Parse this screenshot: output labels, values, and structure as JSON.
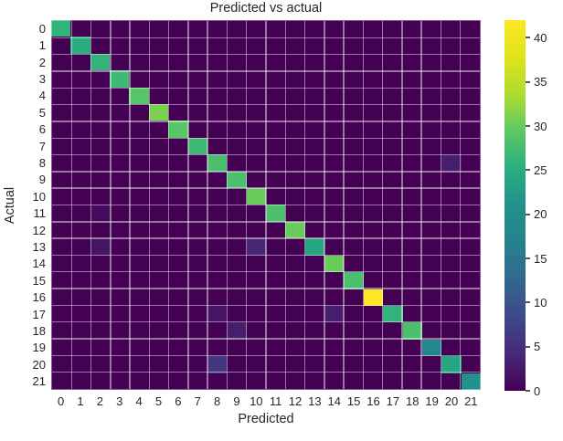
{
  "title": "Predicted vs actual",
  "colors": {
    "background": "#ffffff",
    "text": "#262626",
    "colormap_min": "#440154",
    "colormap_max": "#fde725"
  },
  "chart_data": {
    "type": "heatmap",
    "title": "Predicted vs actual",
    "xlabel": "Predicted",
    "ylabel": "Actual",
    "colormap": "viridis",
    "vmin": 0,
    "vmax": 42,
    "colorbar_ticks": [
      0,
      5,
      10,
      15,
      20,
      25,
      30,
      35,
      40
    ],
    "colorbar_position": "right",
    "grid": true,
    "x_ticklabels": [
      "0",
      "1",
      "2",
      "3",
      "4",
      "5",
      "6",
      "7",
      "8",
      "9",
      "10",
      "11",
      "12",
      "13",
      "14",
      "15",
      "16",
      "17",
      "18",
      "19",
      "20",
      "21"
    ],
    "y_ticklabels": [
      "0",
      "1",
      "2",
      "3",
      "4",
      "5",
      "6",
      "7",
      "8",
      "9",
      "10",
      "11",
      "12",
      "13",
      "14",
      "15",
      "16",
      "17",
      "18",
      "19",
      "20",
      "21"
    ],
    "matrix": [
      [
        26,
        0,
        0,
        0,
        0,
        0,
        0,
        0,
        0,
        0,
        0,
        0,
        0,
        0,
        0,
        0,
        0,
        0,
        0,
        0,
        0,
        0
      ],
      [
        0,
        25,
        0,
        0,
        0,
        0,
        0,
        0,
        0,
        0,
        0,
        0,
        0,
        0,
        0,
        0,
        0,
        0,
        0,
        0,
        0,
        0
      ],
      [
        0,
        0,
        26,
        0,
        0,
        0,
        0,
        0,
        0,
        0,
        0,
        0,
        0,
        0,
        0,
        0,
        0,
        0,
        0,
        0,
        0,
        0
      ],
      [
        0,
        0,
        0,
        27,
        0,
        0,
        0,
        0,
        0,
        0,
        0,
        0,
        0,
        0,
        0,
        0,
        0,
        0,
        0,
        0,
        0,
        0
      ],
      [
        0,
        0,
        0,
        0,
        29,
        0,
        0,
        0,
        0,
        0,
        0,
        0,
        0,
        0,
        0,
        0,
        0,
        0,
        0,
        0,
        0,
        0
      ],
      [
        0,
        0,
        0,
        0,
        0,
        31,
        0,
        0,
        0,
        0,
        0,
        0,
        0,
        0,
        0,
        0,
        0,
        0,
        0,
        0,
        0,
        0
      ],
      [
        0,
        0,
        0,
        0,
        0,
        0,
        29,
        0,
        0,
        0,
        0,
        0,
        0,
        0,
        0,
        0,
        0,
        0,
        0,
        0,
        0,
        0
      ],
      [
        0,
        0,
        0,
        0,
        0,
        0,
        0,
        27,
        0,
        0,
        0,
        0,
        0,
        0,
        0,
        0,
        0,
        0,
        0,
        0,
        0,
        0
      ],
      [
        0,
        0,
        0,
        0,
        0,
        0,
        0,
        0,
        28,
        0,
        0,
        0,
        0,
        0,
        0,
        0,
        0,
        0,
        0,
        0,
        3,
        0
      ],
      [
        0,
        0,
        0,
        0,
        0,
        0,
        0,
        0,
        0,
        28,
        0,
        0,
        0,
        0,
        0,
        0,
        0,
        0,
        0,
        0,
        0,
        0
      ],
      [
        0,
        0,
        0,
        0,
        0,
        0,
        0,
        0,
        0,
        0,
        30,
        0,
        0,
        0,
        0,
        0,
        0,
        0,
        0,
        0,
        0,
        0
      ],
      [
        0,
        0,
        1,
        0,
        0,
        0,
        0,
        0,
        0,
        0,
        0,
        28,
        0,
        0,
        0,
        0,
        0,
        0,
        0,
        0,
        0,
        0
      ],
      [
        0,
        0,
        0,
        0,
        0,
        0,
        0,
        0,
        0,
        0,
        0,
        0,
        30,
        0,
        0,
        0,
        0,
        0,
        0,
        0,
        0,
        0
      ],
      [
        0,
        0,
        2,
        0,
        0,
        0,
        0,
        0,
        0,
        0,
        4,
        0,
        0,
        24,
        0,
        0,
        0,
        0,
        0,
        0,
        0,
        0
      ],
      [
        0,
        0,
        0,
        0,
        0,
        0,
        0,
        0,
        0,
        0,
        0,
        0,
        0,
        0,
        30,
        0,
        0,
        0,
        0,
        0,
        0,
        0
      ],
      [
        0,
        0,
        0,
        0,
        0,
        0,
        0,
        0,
        0,
        0,
        0,
        0,
        0,
        0,
        0,
        28,
        0,
        0,
        0,
        0,
        0,
        0
      ],
      [
        0,
        0,
        0,
        0,
        0,
        0,
        0,
        0,
        0,
        0,
        0,
        0,
        0,
        0,
        0,
        0,
        42,
        0,
        0,
        0,
        0,
        0
      ],
      [
        0,
        0,
        0,
        0,
        0,
        0,
        0,
        0,
        2,
        0,
        0,
        0,
        0,
        0,
        3,
        0,
        0,
        26,
        0,
        0,
        0,
        0
      ],
      [
        0,
        0,
        0,
        0,
        0,
        0,
        0,
        0,
        0,
        3,
        0,
        0,
        0,
        0,
        0,
        0,
        0,
        0,
        28,
        0,
        0,
        0
      ],
      [
        0,
        0,
        0,
        0,
        0,
        0,
        0,
        0,
        0,
        0,
        0,
        0,
        0,
        0,
        0,
        0,
        0,
        0,
        0,
        18,
        0,
        0
      ],
      [
        0,
        0,
        0,
        0,
        0,
        0,
        0,
        0,
        6,
        0,
        0,
        0,
        0,
        0,
        0,
        0,
        0,
        0,
        0,
        0,
        24,
        0
      ],
      [
        0,
        0,
        0,
        0,
        0,
        0,
        0,
        0,
        0,
        0,
        0,
        0,
        0,
        0,
        0,
        0,
        0,
        0,
        0,
        0,
        0,
        21
      ]
    ]
  }
}
